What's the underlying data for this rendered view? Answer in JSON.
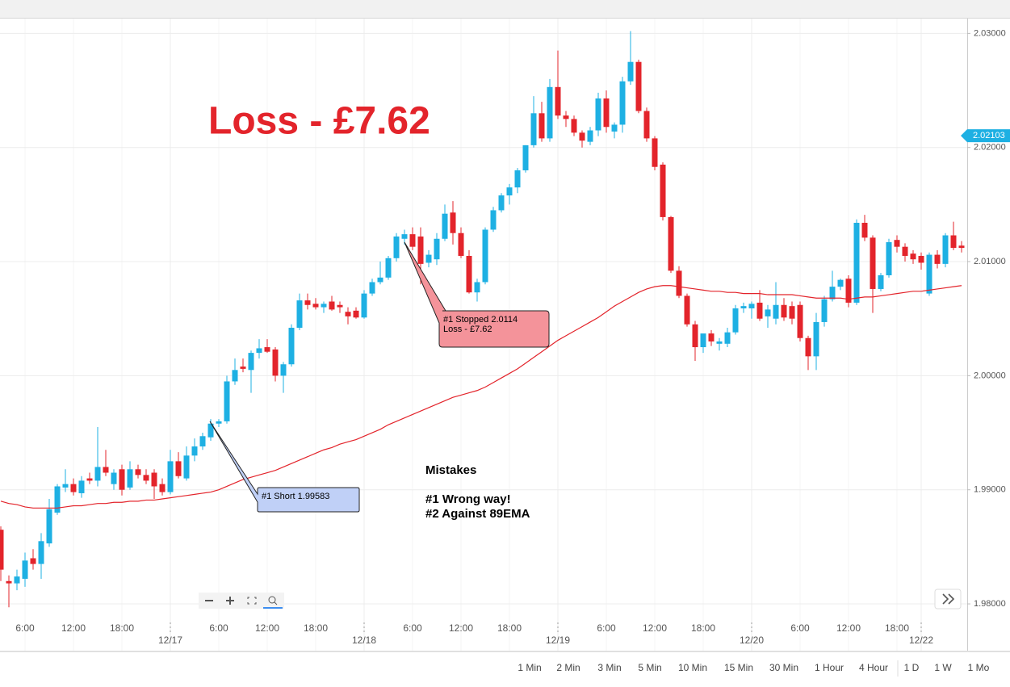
{
  "chart_data": {
    "type": "candlestick",
    "categories": [
      null,
      null,
      null,
      "6:00",
      null,
      null,
      null,
      null,
      null,
      "12:00",
      null,
      null,
      null,
      null,
      null,
      "18:00",
      null,
      null,
      null,
      null,
      null,
      "12/17",
      null,
      null,
      null,
      null,
      null,
      "6:00",
      null,
      null,
      null,
      null,
      null,
      "12:00",
      null,
      null,
      null,
      null,
      null,
      "18:00",
      null,
      null,
      null,
      null,
      null,
      "12/18",
      null,
      null,
      null,
      null,
      null,
      "6:00",
      null,
      null,
      null,
      null,
      null,
      "12:00",
      null,
      null,
      null,
      null,
      null,
      "18:00",
      null,
      null,
      null,
      null,
      null,
      "12/19",
      null,
      null,
      null,
      null,
      null,
      "6:00",
      null,
      null,
      null,
      null,
      null,
      "12:00",
      null,
      null,
      null,
      null,
      null,
      "18:00",
      null,
      null,
      null,
      null,
      null,
      "12/20",
      null,
      null,
      null,
      null,
      null,
      "6:00",
      null,
      null,
      null,
      null,
      null,
      "12:00",
      null,
      null,
      null,
      null,
      null,
      "18:00",
      null,
      null,
      "12/22",
      null,
      null,
      null,
      null,
      null
    ],
    "open": [
      1.9865,
      1.982,
      1.9818,
      1.9822,
      1.984,
      1.9835,
      1.9853,
      1.988,
      1.9902,
      1.9905,
      1.9897,
      1.991,
      1.9908,
      1.992,
      1.9905,
      1.9918,
      1.9902,
      1.9918,
      1.9913,
      1.9915,
      1.9905,
      1.9898,
      1.9925,
      1.991,
      1.993,
      1.9938,
      1.9946,
      1.9958,
      1.996,
      1.9995,
      2.0008,
      2.0005,
      2.002,
      2.0025,
      2.0023,
      2.0,
      2.001,
      2.0042,
      2.0066,
      2.0063,
      2.006,
      2.0065,
      2.0062,
      2.0056,
      2.0057,
      2.0051,
      2.0072,
      2.0082,
      2.0086,
      2.0103,
      2.012,
      2.0124,
      2.0122,
      2.0099,
      2.0102,
      2.012,
      2.0143,
      2.0125,
      2.0105,
      2.0073,
      2.0082,
      2.0128,
      2.0145,
      2.0158,
      2.0165,
      2.018,
      2.0202,
      2.023,
      2.0208,
      2.0253,
      2.0228,
      2.0225,
      2.0213,
      2.0205,
      2.0215,
      2.0243,
      2.0214,
      2.022,
      2.0258,
      2.0275,
      2.0232,
      2.0208,
      2.0185,
      2.0139,
      2.0092,
      2.007,
      2.0045,
      2.0025,
      2.0037,
      2.0028,
      2.0028,
      2.0038,
      2.0059,
      2.0059,
      2.0064,
      2.0052,
      2.005,
      2.0062,
      2.0061,
      2.0062,
      2.0033,
      2.0017,
      2.0047,
      2.0067,
      2.0078,
      2.0085,
      2.0064,
      2.0134,
      2.0121,
      2.0076,
      2.0088,
      2.0119,
      2.0113,
      2.0107,
      2.0105,
      2.0072,
      2.0106,
      2.0098,
      2.0123,
      2.0114
    ],
    "high": [
      1.9868,
      1.9825,
      1.983,
      1.9845,
      1.9848,
      1.9862,
      1.9892,
      1.9905,
      1.9918,
      1.991,
      1.9912,
      1.9915,
      1.9955,
      1.9935,
      1.9918,
      1.9922,
      1.9925,
      1.9922,
      1.9918,
      1.9918,
      1.991,
      1.9935,
      1.9933,
      1.9938,
      1.9945,
      1.995,
      1.9962,
      1.9962,
      2.0,
      2.0015,
      2.0015,
      2.0022,
      2.0032,
      2.0032,
      2.0025,
      2.0012,
      2.0045,
      2.0072,
      2.0072,
      2.0068,
      2.0065,
      2.007,
      2.0065,
      2.006,
      2.006,
      2.0075,
      2.0085,
      2.01,
      2.0105,
      2.0125,
      2.0128,
      2.013,
      2.013,
      2.011,
      2.0125,
      2.015,
      2.0153,
      2.013,
      2.011,
      2.0085,
      2.013,
      2.0148,
      2.016,
      2.0168,
      2.0182,
      2.0202,
      2.0245,
      2.024,
      2.026,
      2.0285,
      2.0232,
      2.0228,
      2.0215,
      2.0218,
      2.0248,
      2.025,
      2.0222,
      2.0262,
      2.0302,
      2.0277,
      2.0235,
      2.021,
      2.0187,
      2.014,
      2.0096,
      2.0072,
      2.0048,
      2.0035,
      2.004,
      2.0033,
      2.0042,
      2.0062,
      2.0064,
      2.0065,
      2.0075,
      2.0062,
      2.0082,
      2.0068,
      2.0065,
      2.0065,
      2.0035,
      2.0055,
      2.007,
      2.0092,
      2.0085,
      2.0088,
      2.0137,
      2.0141,
      2.0123,
      2.009,
      2.012,
      2.0123,
      2.0116,
      2.011,
      2.0108,
      2.0108,
      2.011,
      2.0125,
      2.0135,
      2.0118
    ],
    "low": [
      1.982,
      1.9797,
      1.9812,
      1.9815,
      1.983,
      1.9822,
      1.985,
      1.9878,
      1.9898,
      1.9895,
      1.9893,
      1.9905,
      1.9903,
      1.9912,
      1.99,
      1.9895,
      1.99,
      1.991,
      1.9905,
      1.9892,
      1.9895,
      1.9896,
      1.991,
      1.9908,
      1.9925,
      1.9935,
      1.9943,
      1.9955,
      1.9958,
      1.9992,
      2.0003,
      1.9985,
      2.0015,
      2.002,
      1.9995,
      1.9985,
      2.0008,
      2.004,
      2.0058,
      2.0058,
      2.0055,
      2.0057,
      2.0055,
      2.0045,
      2.005,
      2.005,
      2.007,
      2.008,
      2.0084,
      2.01,
      2.0115,
      2.011,
      2.008,
      2.0095,
      2.0097,
      2.0118,
      2.0115,
      2.0103,
      2.0072,
      2.0065,
      2.008,
      2.0126,
      2.0143,
      2.015,
      2.016,
      2.0178,
      2.02,
      2.0205,
      2.0205,
      2.0225,
      2.0218,
      2.021,
      2.02,
      2.0202,
      2.021,
      2.0213,
      2.0208,
      2.0213,
      2.0255,
      2.023,
      2.0205,
      2.018,
      2.0136,
      2.009,
      2.0068,
      2.0043,
      2.0013,
      2.002,
      2.0026,
      2.0022,
      2.0025,
      2.0036,
      2.0055,
      2.005,
      2.0048,
      2.0042,
      2.0045,
      2.0048,
      2.0045,
      2.003,
      2.0005,
      2.0005,
      2.0043,
      2.0065,
      2.0075,
      2.006,
      2.0062,
      2.0118,
      2.0055,
      2.0074,
      2.0086,
      2.0108,
      2.01,
      2.0098,
      2.0093,
      2.007,
      2.0094,
      2.0095,
      2.011,
      2.0108
    ],
    "close": [
      1.983,
      1.9818,
      1.9824,
      1.9838,
      1.9835,
      1.9855,
      1.9883,
      1.9903,
      1.9905,
      1.9898,
      1.9908,
      1.9908,
      1.992,
      1.9915,
      1.9915,
      1.99,
      1.9918,
      1.9913,
      1.9908,
      1.9903,
      1.9898,
      1.9925,
      1.9912,
      1.993,
      1.9938,
      1.9947,
      1.9958,
      1.996,
      1.9995,
      2.0005,
      2.0006,
      2.002,
      2.0024,
      2.0021,
      2.0,
      2.001,
      2.0042,
      2.0066,
      2.0062,
      2.006,
      2.0063,
      2.0058,
      2.006,
      2.0052,
      2.0051,
      2.0072,
      2.0082,
      2.0086,
      2.0103,
      2.0122,
      2.0124,
      2.0113,
      2.0098,
      2.0106,
      2.012,
      2.0142,
      2.0125,
      2.0105,
      2.0073,
      2.0082,
      2.0128,
      2.0145,
      2.0158,
      2.0165,
      2.018,
      2.0202,
      2.023,
      2.0208,
      2.0253,
      2.0228,
      2.0225,
      2.0213,
      2.0206,
      2.0215,
      2.0243,
      2.0218,
      2.022,
      2.0258,
      2.0275,
      2.0232,
      2.0208,
      2.0183,
      2.0139,
      2.0092,
      2.007,
      2.0045,
      2.0025,
      2.0037,
      2.003,
      2.003,
      2.0038,
      2.0059,
      2.0061,
      2.0063,
      2.005,
      2.0058,
      2.0062,
      2.0051,
      2.005,
      2.0033,
      2.0017,
      2.0047,
      2.0067,
      2.0078,
      2.0084,
      2.0064,
      2.0134,
      2.0121,
      2.0076,
      2.0088,
      2.0117,
      2.0113,
      2.0105,
      2.0102,
      2.0099,
      2.0106,
      2.0098,
      2.0123,
      2.0112,
      2.0112
    ],
    "up_color": "#1eb0e3",
    "down_color": "#e3242b",
    "ema": {
      "color": "#e3242b",
      "values": [
        1.989,
        1.9888,
        1.9887,
        1.9885,
        1.9884,
        1.9884,
        1.9884,
        1.9884,
        1.9885,
        1.9886,
        1.9886,
        1.9887,
        1.9888,
        1.9888,
        1.9889,
        1.9889,
        1.989,
        1.989,
        1.9891,
        1.9891,
        1.9892,
        1.9893,
        1.9894,
        1.9895,
        1.9896,
        1.9897,
        1.9898,
        1.99,
        1.9903,
        1.9906,
        1.9909,
        1.9911,
        1.9913,
        1.9915,
        1.9917,
        1.992,
        1.9923,
        1.9926,
        1.9929,
        1.9932,
        1.9935,
        1.9937,
        1.994,
        1.9942,
        1.9944,
        1.9947,
        1.995,
        1.9953,
        1.9957,
        1.996,
        1.9963,
        1.9966,
        1.9969,
        1.9972,
        1.9975,
        1.9978,
        1.9981,
        1.9983,
        1.9985,
        1.9987,
        1.999,
        1.9994,
        1.9998,
        2.0002,
        2.0006,
        2.0011,
        2.0016,
        2.0021,
        2.0026,
        2.0031,
        2.0035,
        2.0039,
        2.0043,
        2.0047,
        2.0051,
        2.0056,
        2.0061,
        2.0065,
        2.0069,
        2.0073,
        2.0076,
        2.0078,
        2.0079,
        2.0079,
        2.0078,
        2.0077,
        2.0076,
        2.0075,
        2.0074,
        2.0074,
        2.0073,
        2.0073,
        2.0072,
        2.0072,
        2.0072,
        2.0071,
        2.0071,
        2.0071,
        2.0071,
        2.007,
        2.0069,
        2.0068,
        2.0068,
        2.0068,
        2.0068,
        2.0067,
        2.0068,
        2.0069,
        2.0069,
        2.007,
        2.0071,
        2.0072,
        2.0073,
        2.0074,
        2.0074,
        2.0075,
        2.0076,
        2.0077,
        2.0078,
        2.0079
      ]
    },
    "ylim": [
      1.9759,
      2.0313
    ],
    "yticks": [
      {
        "value": 1.98,
        "label": "1.98000"
      },
      {
        "value": 1.99,
        "label": "1.99000"
      },
      {
        "value": 2.0,
        "label": "2.00000"
      },
      {
        "value": 2.01,
        "label": "2.01000"
      },
      {
        "value": 2.02,
        "label": "2.02000"
      },
      {
        "value": 2.03,
        "label": "2.03000"
      }
    ],
    "last_price": 2.02103,
    "grid": true,
    "annotations": {
      "headline": "Loss - £7.62",
      "short": "#1 Short 1.99583",
      "stopped": [
        "#1 Stopped 2.0114",
        "Loss - £7.62"
      ],
      "mistakes": [
        "Mistakes",
        "#1 Wrong way!",
        "#2 Against 89EMA"
      ]
    },
    "toolbar": [
      "1 Min",
      "2 Min",
      "3 Min",
      "5 Min",
      "10 Min",
      "15 Min",
      "30 Min",
      "1 Hour",
      "4 Hour",
      "1 D",
      "1 W",
      "1 Mo"
    ]
  }
}
